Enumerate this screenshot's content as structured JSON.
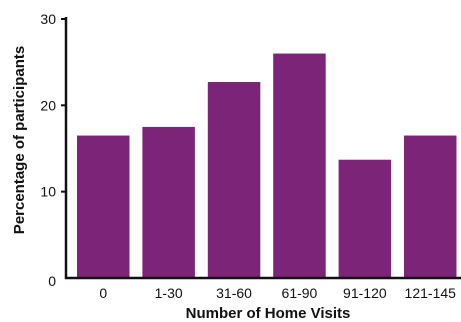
{
  "chart_data": {
    "type": "bar",
    "title": "",
    "xlabel": "Number of Home Visits",
    "ylabel": "Percentage of participants",
    "categories": [
      "0",
      "1-30",
      "31-60",
      "61-90",
      "91-120",
      "121-145"
    ],
    "values": [
      16.5,
      17.5,
      22.7,
      26.0,
      13.7,
      16.5
    ],
    "ylim": [
      0,
      30
    ],
    "yticks": [
      0,
      10,
      20,
      30
    ],
    "grid": false,
    "legend": "none",
    "bar_color": "#7b2478",
    "axis_color": "#111111"
  }
}
